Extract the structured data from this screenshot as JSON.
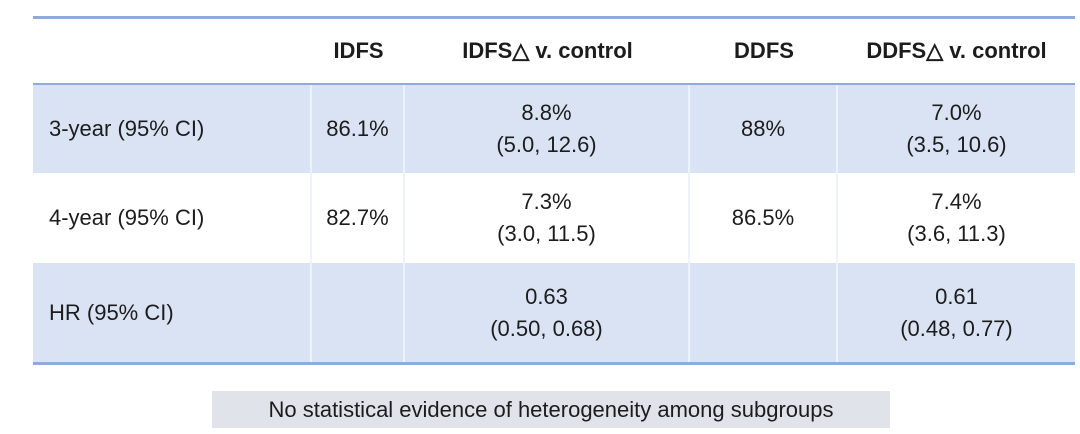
{
  "table": {
    "headers": [
      "",
      "IDFS",
      "IDFS△ v. control",
      "DDFS",
      "DDFS△ v. control"
    ],
    "rows": [
      {
        "label": "3-year (95% CI)",
        "idfs": "86.1%",
        "idfs_delta": "8.8%",
        "idfs_delta_ci": "(5.0, 12.6)",
        "ddfs": "88%",
        "ddfs_delta": "7.0%",
        "ddfs_delta_ci": "(3.5, 10.6)"
      },
      {
        "label": "4-year (95% CI)",
        "idfs": "82.7%",
        "idfs_delta": "7.3%",
        "idfs_delta_ci": "(3.0, 11.5)",
        "ddfs": "86.5%",
        "ddfs_delta": "7.4%",
        "ddfs_delta_ci": "(3.6, 11.3)"
      },
      {
        "label": "HR (95% CI)",
        "idfs": "",
        "idfs_delta": "0.63",
        "idfs_delta_ci": "(0.50, 0.68)",
        "ddfs": "",
        "ddfs_delta": "0.61",
        "ddfs_delta_ci": "(0.48, 0.77)"
      }
    ]
  },
  "footer": {
    "note": "No statistical evidence of heterogeneity among subgroups"
  },
  "colors": {
    "border_blue": "#8faadc",
    "row_blue": "#dae3f3",
    "separator": "#eef2fa",
    "note_bg": "#e0e3e9",
    "text": "#1c1c1c"
  }
}
